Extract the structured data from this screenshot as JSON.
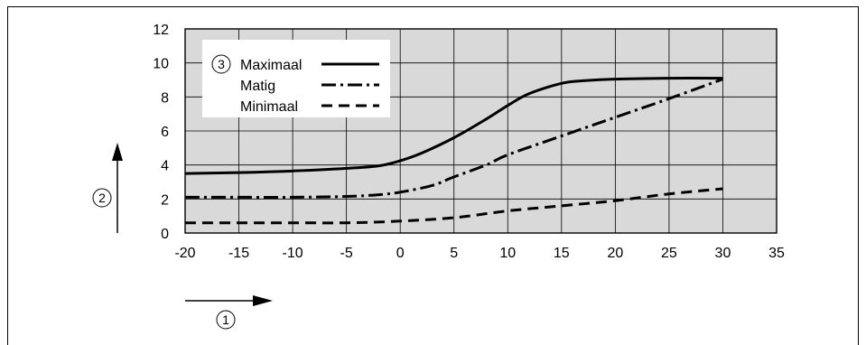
{
  "chart_data": {
    "type": "line",
    "xlim": [
      -20,
      35
    ],
    "ylim": [
      0,
      12
    ],
    "x_ticks": [
      -20,
      -15,
      -10,
      -5,
      0,
      5,
      10,
      15,
      20,
      25,
      30,
      35
    ],
    "y_ticks": [
      0,
      2,
      4,
      6,
      8,
      10,
      12
    ],
    "x_tick_labels": [
      "-20",
      "-15",
      "-10",
      "-5",
      "0",
      "5",
      "10",
      "15",
      "20",
      "25",
      "30",
      "35"
    ],
    "y_tick_labels": [
      "0",
      "2",
      "4",
      "6",
      "8",
      "10",
      "12"
    ],
    "grid": true,
    "legend_position": "top-left",
    "legend_marker": "③",
    "xlabel": "①",
    "ylabel": "②",
    "series": [
      {
        "name": "Maximaal",
        "style": "solid",
        "x": [
          -20,
          -15,
          -10,
          -5,
          -2,
          0,
          2,
          5,
          8,
          10,
          12,
          15,
          17,
          20,
          25,
          30
        ],
        "y": [
          3.5,
          3.55,
          3.65,
          3.8,
          3.95,
          4.25,
          4.7,
          5.6,
          6.7,
          7.5,
          8.2,
          8.8,
          8.95,
          9.05,
          9.1,
          9.1
        ]
      },
      {
        "name": "Matig",
        "style": "dashdot",
        "x": [
          -20,
          -15,
          -10,
          -5,
          -2,
          0,
          3,
          5,
          8,
          10,
          15,
          20,
          25,
          30
        ],
        "y": [
          2.1,
          2.1,
          2.1,
          2.15,
          2.25,
          2.4,
          2.8,
          3.3,
          4.0,
          4.6,
          5.7,
          6.8,
          7.9,
          9.05
        ]
      },
      {
        "name": "Minimaal",
        "style": "dashed",
        "x": [
          -20,
          -15,
          -10,
          -5,
          0,
          5,
          10,
          15,
          20,
          25,
          30
        ],
        "y": [
          0.6,
          0.6,
          0.6,
          0.6,
          0.7,
          0.9,
          1.3,
          1.6,
          1.9,
          2.3,
          2.6
        ]
      }
    ]
  }
}
